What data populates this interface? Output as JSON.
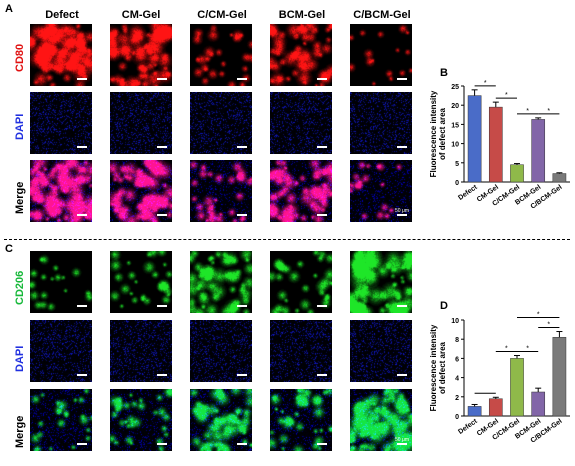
{
  "colors": {
    "red": "#ff1a1a",
    "blue": "#2a3cff",
    "green": "#1fd84a",
    "bar_defect": "#4a6cc8",
    "bar_cm": "#c64b48",
    "bar_c_cm": "#8fb94a",
    "bar_bcm": "#8266a8",
    "bar_c_bcm": "#7a7a7a"
  },
  "panels": {
    "A": "A",
    "B": "B",
    "C": "C",
    "D": "D"
  },
  "columns": [
    "Defect",
    "CM-Gel",
    "C/CM-Gel",
    "BCM-Gel",
    "C/BCM-Gel"
  ],
  "top": {
    "rows": [
      {
        "label": "CD80",
        "color": "#ff1a1a",
        "kind": "red",
        "intensities": [
          0.85,
          0.75,
          0.25,
          0.62,
          0.08
        ]
      },
      {
        "label": "DAPI",
        "color": "#2a3cff",
        "kind": "blue",
        "intensities": [
          0.7,
          0.6,
          0.55,
          0.6,
          0.5
        ]
      },
      {
        "label": "Merge",
        "color": "#000000",
        "kind": "merge-red",
        "intensities": [
          0.85,
          0.75,
          0.3,
          0.62,
          0.12
        ]
      }
    ]
  },
  "bottom": {
    "rows": [
      {
        "label": "CD206",
        "color": "#1fd84a",
        "kind": "green",
        "intensities": [
          0.12,
          0.25,
          0.6,
          0.3,
          0.9
        ]
      },
      {
        "label": "DAPI",
        "color": "#2a3cff",
        "kind": "blue",
        "intensities": [
          0.6,
          0.55,
          0.6,
          0.55,
          0.6
        ]
      },
      {
        "label": "Merge",
        "color": "#000000",
        "kind": "merge-green",
        "intensities": [
          0.2,
          0.3,
          0.6,
          0.35,
          0.85
        ]
      }
    ]
  },
  "scale_label": "50 μm",
  "chart_data": [
    {
      "type": "bar",
      "panel": "B",
      "categories": [
        "Defect",
        "CM-Gel",
        "C/CM-Gel",
        "BCM-Gel",
        "C/BCM-Gel"
      ],
      "values": [
        22.5,
        19.5,
        4.5,
        16.3,
        2.2
      ],
      "errors": [
        1.5,
        1.3,
        0.3,
        0.4,
        0.2
      ],
      "ylabel": "Fluorescence intensity\nof defect area",
      "ylim": [
        0,
        25
      ],
      "yticks": [
        0,
        5,
        10,
        15,
        20,
        25
      ],
      "significance": [
        [
          "Defect",
          "CM-Gel",
          "*"
        ],
        [
          "CM-Gel",
          "C/CM-Gel",
          "*"
        ],
        [
          "C/CM-Gel",
          "BCM-Gel",
          "*"
        ],
        [
          "BCM-Gel",
          "C/BCM-Gel",
          "*"
        ]
      ]
    },
    {
      "type": "bar",
      "panel": "D",
      "categories": [
        "Defect",
        "CM-Gel",
        "C/CM-Gel",
        "BCM-Gel",
        "C/BCM-Gel"
      ],
      "values": [
        1.0,
        1.8,
        6.0,
        2.5,
        8.2
      ],
      "errors": [
        0.2,
        0.15,
        0.3,
        0.4,
        0.6
      ],
      "ylabel": "Fluorescence intensity\nof defect area",
      "ylim": [
        0,
        10
      ],
      "yticks": [
        0,
        2,
        4,
        6,
        8,
        10
      ],
      "significance": [
        [
          "Defect",
          "CM-Gel",
          ""
        ],
        [
          "CM-Gel",
          "C/CM-Gel",
          "*"
        ],
        [
          "C/CM-Gel",
          "BCM-Gel",
          "*"
        ],
        [
          "BCM-Gel",
          "C/BCM-Gel",
          "*"
        ],
        [
          "C/CM-Gel",
          "C/BCM-Gel",
          "*"
        ]
      ]
    }
  ]
}
